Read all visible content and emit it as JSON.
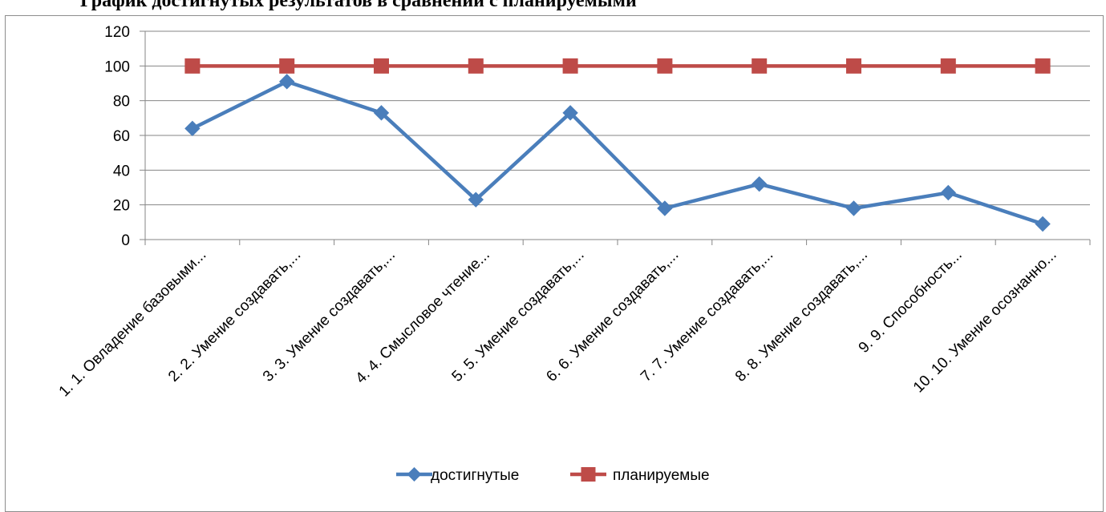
{
  "page": {
    "heading": "График достигнутых результатов в сравнении с планируемыми"
  },
  "chart_data": {
    "type": "line",
    "title": "",
    "xlabel": "",
    "ylabel": "",
    "categories": [
      "1. 1. Овладение базовыми...",
      "2. 2. Умение создавать,...",
      "3. 3. Умение создавать,...",
      "4. 4. Смысловое чтение...",
      "5. 5. Умение создавать,...",
      "6. 6. Умение создавать,...",
      "7. 7. Умение создавать,...",
      "8. 8. Умение создавать,...",
      "9. 9. Способность...",
      "10. 10. Умение осознанно..."
    ],
    "series": [
      {
        "name": "достигнутые",
        "color": "#4a7ebb",
        "marker": "diamond",
        "values": [
          64,
          91,
          73,
          23,
          73,
          18,
          32,
          18,
          27,
          9
        ]
      },
      {
        "name": "планируемые",
        "color": "#be4b48",
        "marker": "square",
        "values": [
          100,
          100,
          100,
          100,
          100,
          100,
          100,
          100,
          100,
          100
        ]
      }
    ],
    "ylim": [
      0,
      120
    ],
    "yticks": [
      "0",
      "20",
      "40",
      "60",
      "80",
      "100",
      "120"
    ],
    "grid": true,
    "legend_position": "bottom"
  }
}
